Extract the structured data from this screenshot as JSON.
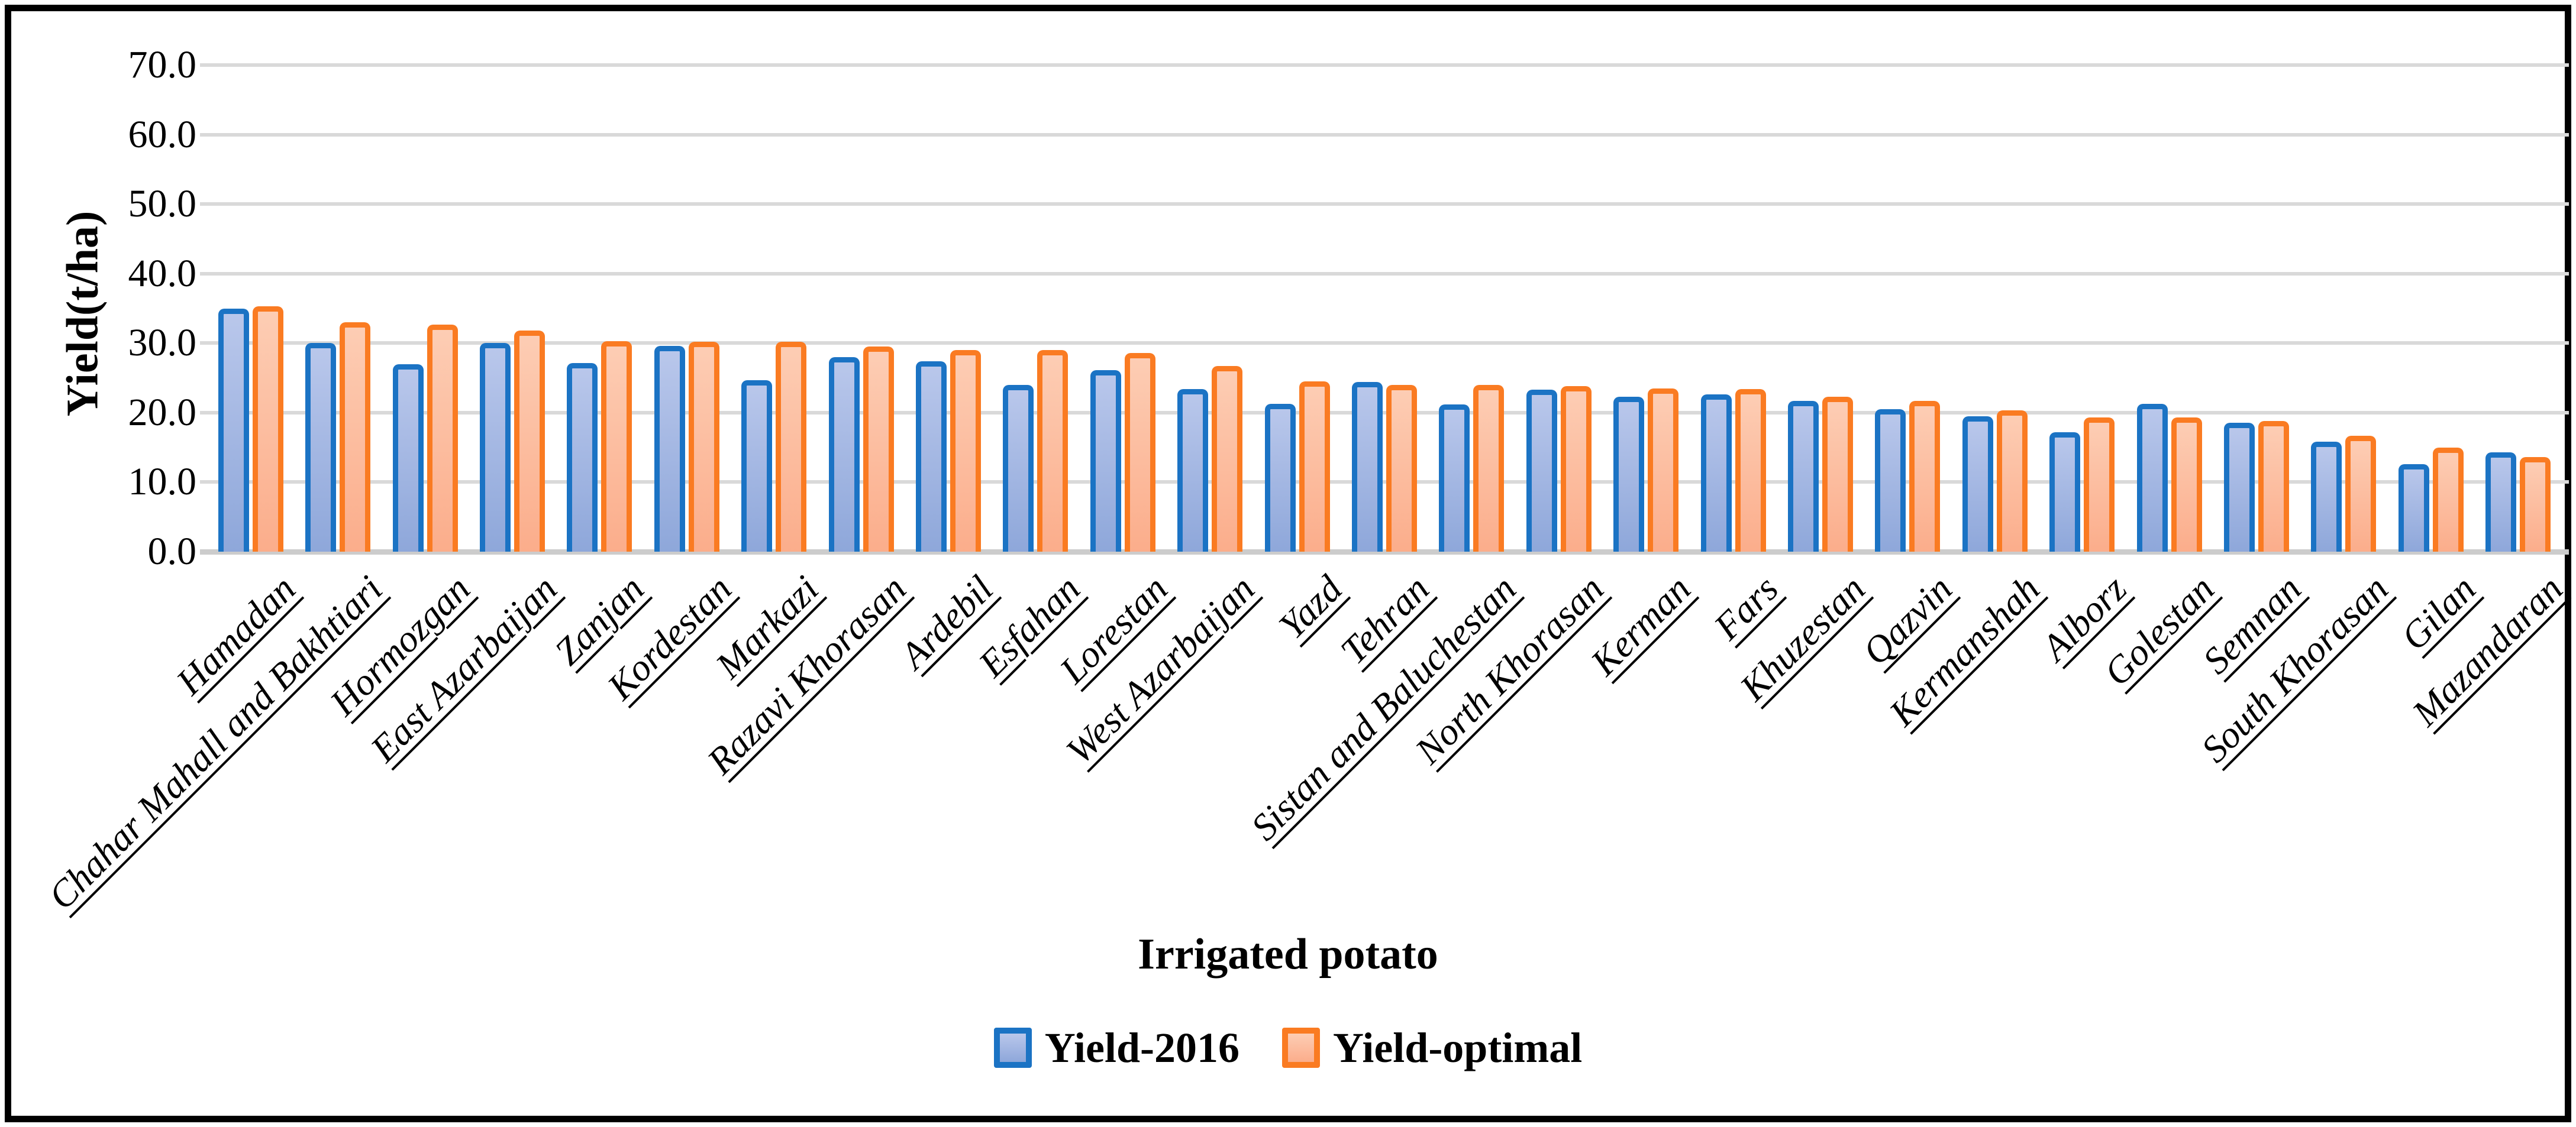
{
  "figure": {
    "y_axis_title": "Yield(t/ha)",
    "x_axis_title": "Irrigated potato"
  },
  "colors": {
    "series1_border": "#1B73C4",
    "series1_fill_top": "#B9C7EB",
    "series1_fill_bottom": "#8EA7DA",
    "series2_border": "#FA7B22",
    "series2_fill_top": "#FDCDB4",
    "series2_fill_bottom": "#FBAD8B",
    "gridline": "#D9D9D9",
    "axis_line": "#CCCCCC",
    "frame": "#000000",
    "text": "#000000"
  },
  "chart_data": {
    "type": "bar",
    "title": "",
    "xlabel": "Irrigated potato",
    "ylabel": "Yield(t/ha)",
    "ylim": [
      0,
      70
    ],
    "ytick_step": 10,
    "ytick_labels": [
      "0.0",
      "10.0",
      "20.0",
      "30.0",
      "40.0",
      "50.0",
      "60.0",
      "70.0"
    ],
    "grid": true,
    "legend_position": "bottom",
    "categories": [
      "Hamadan",
      "Chahar Mahall and Bakhtiari",
      "Hormozgan",
      "East Azarbaijan",
      "Zanjan",
      "Kordestan",
      "Markazi",
      "Razavi Khorasan",
      "Ardebil",
      "Esfahan",
      "Lorestan",
      "West Azarbaijan",
      "Yazd",
      "Tehran",
      "Sistan and Baluchestan",
      "North Khorasan",
      "Kerman",
      "Fars",
      "Khuzestan",
      "Qazvin",
      "Kermanshah",
      "Alborz",
      "Golestan",
      "Semnan",
      "South Khorasan",
      "Gilan",
      "Mazandaran"
    ],
    "series": [
      {
        "name": "Yield-2016",
        "values": [
          35.0,
          30.0,
          27.0,
          30.0,
          27.1,
          29.6,
          24.7,
          28.0,
          27.4,
          24.0,
          26.1,
          23.4,
          21.3,
          24.4,
          21.2,
          23.3,
          22.3,
          22.6,
          21.7,
          20.5,
          19.5,
          17.2,
          21.3,
          18.5,
          15.8,
          12.6,
          14.3
        ]
      },
      {
        "name": "Yield-optimal",
        "values": [
          35.3,
          33.0,
          32.7,
          31.8,
          30.3,
          30.2,
          30.2,
          29.5,
          29.0,
          29.0,
          28.6,
          26.7,
          24.5,
          24.0,
          24.0,
          23.8,
          23.5,
          23.4,
          22.3,
          21.7,
          20.3,
          19.3,
          19.3,
          18.8,
          16.7,
          15.0,
          13.6
        ]
      }
    ]
  }
}
